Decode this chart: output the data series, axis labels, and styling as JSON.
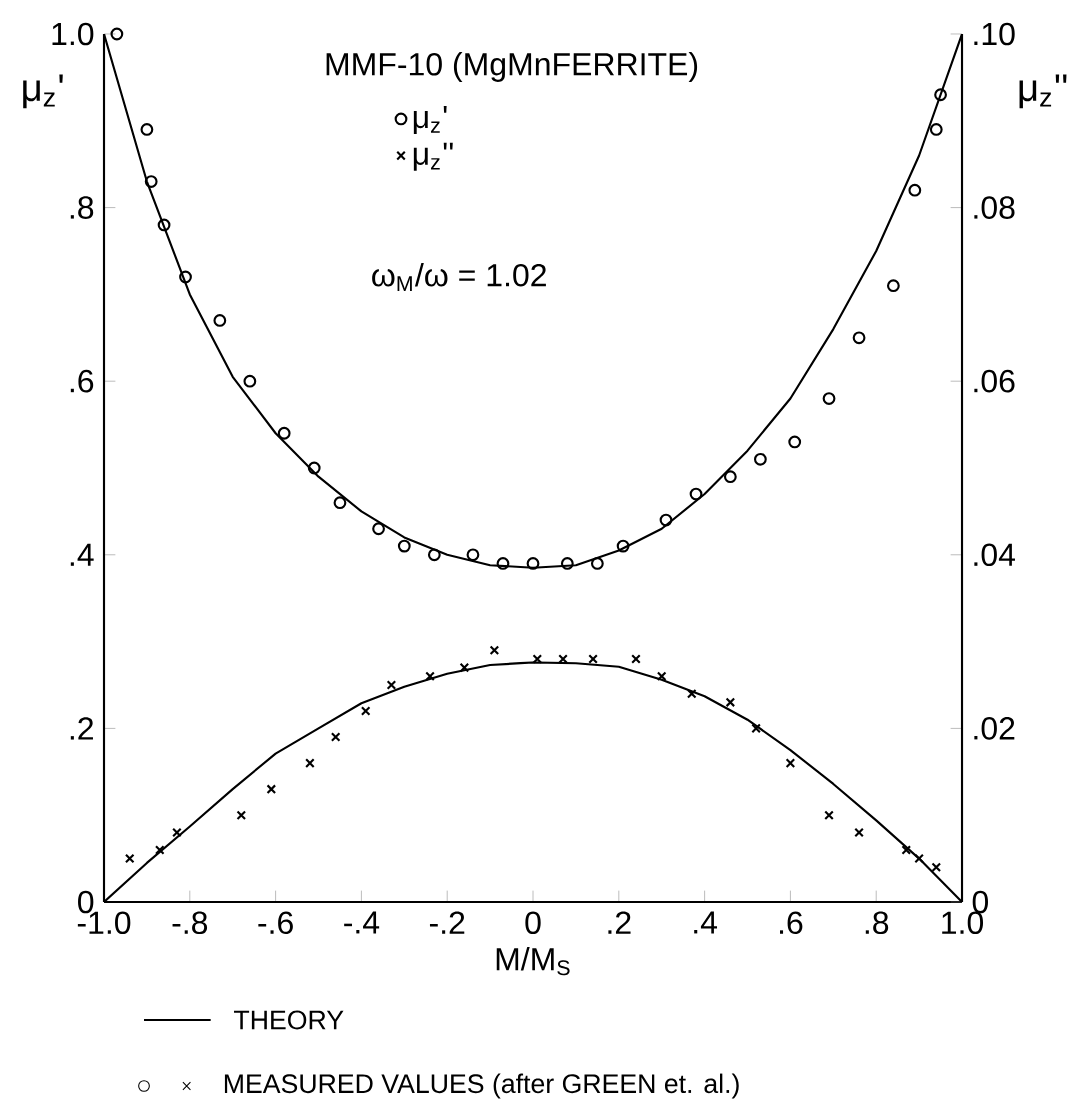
{
  "chart_data": {
    "type": "scatter",
    "title": "MMF-10 (MgMnFERRITE)",
    "xlabel": "M/M$_{S}$",
    "ylabel": "μ$_{z}$'",
    "y2label": "μ$_{z}$''",
    "xlim": [
      -1,
      1
    ],
    "xticks": [
      {
        "value": -1,
        "label": "-1.0"
      },
      {
        "value": -0.8,
        "label": "-.8"
      },
      {
        "value": -0.6,
        "label": "-.6"
      },
      {
        "value": -0.4,
        "label": "-.4"
      },
      {
        "value": -0.2,
        "label": "-.2"
      },
      0,
      {
        "value": 0.2,
        "label": ".2"
      },
      {
        "value": 0.4,
        "label": ".4"
      },
      {
        "value": 0.6,
        "label": ".6"
      },
      {
        "value": 0.8,
        "label": ".8"
      },
      {
        "value": 1,
        "label": "1.0"
      }
    ],
    "ylim": [
      0,
      1
    ],
    "yticks": [
      0,
      {
        "value": 0.2,
        "label": ".2"
      },
      {
        "value": 0.4,
        "label": ".4"
      },
      {
        "value": 0.6,
        "label": ".6"
      },
      {
        "value": 0.8,
        "label": ".8"
      },
      {
        "value": 1,
        "label": "1.0"
      }
    ],
    "y2lim": [
      0,
      0.1
    ],
    "y2ticks": [
      0,
      {
        "value": 0.02,
        "label": ".02"
      },
      {
        "value": 0.04,
        "label": ".04"
      },
      {
        "value": 0.06,
        "label": ".06"
      },
      {
        "value": 0.08,
        "label": ".08"
      },
      {
        "value": 0.1,
        "label": ".10"
      }
    ],
    "legend": "top",
    "annotations": [
      "ω$_{M}$/ω = 1.02",
      "THEORY",
      "MEASURED VALUES (after GREEN et. al.)"
    ],
    "series": [
      {
        "name": "μ$_{z}$'",
        "type": "scatter",
        "marker": "circle",
        "color": "#000000",
        "x": [
          -0.97,
          -0.9,
          -0.89,
          -0.86,
          -0.81,
          -0.73,
          -0.66,
          -0.58,
          -0.51,
          -0.45,
          -0.36,
          -0.3,
          -0.23,
          -0.14,
          -0.07,
          0,
          0.08,
          0.15,
          0.21,
          0.31,
          0.38,
          0.46,
          0.53,
          0.61,
          0.69,
          0.76,
          0.84,
          0.89,
          0.94,
          0.95
        ],
        "values": [
          1.0,
          0.89,
          0.83,
          0.78,
          0.72,
          0.67,
          0.6,
          0.54,
          0.5,
          0.46,
          0.43,
          0.41,
          0.4,
          0.4,
          0.39,
          0.39,
          0.39,
          0.39,
          0.41,
          0.44,
          0.47,
          0.49,
          0.51,
          0.53,
          0.58,
          0.65,
          0.71,
          0.82,
          0.89,
          0.93
        ]
      },
      {
        "name": "μ$_{z}$''",
        "type": "scatter",
        "marker": "cross",
        "axis": "y2",
        "color": "#000000",
        "x": [
          -0.94,
          -0.87,
          -0.83,
          -0.68,
          -0.61,
          -0.52,
          -0.46,
          -0.39,
          -0.33,
          -0.24,
          -0.16,
          -0.09,
          0.01,
          0.07,
          0.14,
          0.24,
          0.3,
          0.37,
          0.46,
          0.52,
          0.6,
          0.69,
          0.76,
          0.87,
          0.9,
          0.94
        ],
        "values": [
          0.005,
          0.006,
          0.008,
          0.01,
          0.013,
          0.016,
          0.019,
          0.022,
          0.025,
          0.026,
          0.027,
          0.029,
          0.028,
          0.028,
          0.028,
          0.028,
          0.026,
          0.024,
          0.023,
          0.02,
          0.016,
          0.01,
          0.008,
          0.006,
          0.005,
          0.004
        ]
      },
      {
        "type": "line",
        "marker": "none",
        "color": "#000000",
        "x": [
          -1,
          -0.9,
          -0.8,
          -0.7,
          -0.6,
          -0.5,
          -0.4,
          -0.3,
          -0.2,
          -0.1,
          0,
          0.1,
          0.2,
          0.3,
          0.4,
          0.5,
          0.6,
          0.7,
          0.8,
          0.9,
          1
        ],
        "values": [
          1.0,
          0.83,
          0.7,
          0.605,
          0.54,
          0.49,
          0.45,
          0.42,
          0.4,
          0.388,
          0.385,
          0.388,
          0.405,
          0.43,
          0.47,
          0.52,
          0.58,
          0.66,
          0.75,
          0.86,
          1.0
        ]
      },
      {
        "type": "line",
        "marker": "none",
        "axis": "y2",
        "color": "#000000",
        "x": [
          -1,
          -0.9,
          -0.8,
          -0.7,
          -0.6,
          -0.5,
          -0.4,
          -0.3,
          -0.2,
          -0.1,
          0,
          0.1,
          0.2,
          0.3,
          0.4,
          0.5,
          0.6,
          0.7,
          0.8,
          0.9,
          1
        ],
        "values": [
          0,
          0.0045,
          0.0087,
          0.013,
          0.0171,
          0.02,
          0.0229,
          0.0248,
          0.0263,
          0.0273,
          0.0276,
          0.0275,
          0.0271,
          0.0256,
          0.0237,
          0.021,
          0.0175,
          0.0136,
          0.0094,
          0.005,
          0
        ]
      }
    ]
  }
}
